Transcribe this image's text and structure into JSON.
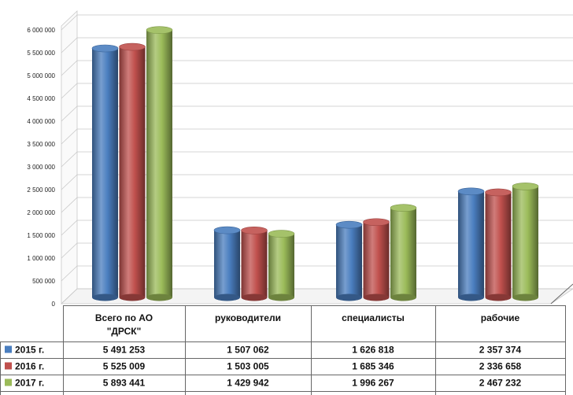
{
  "chart_data": {
    "type": "bar",
    "categories": [
      "Всего по АО \"ДРСК\"",
      "руководители",
      "специалисты",
      "рабочие"
    ],
    "category_lines": [
      [
        "Всего по АО",
        "\"ДРСК\""
      ],
      [
        "руководители"
      ],
      [
        "специалисты"
      ],
      [
        "рабочие"
      ]
    ],
    "series": [
      {
        "name": "2015 г.",
        "values": [
          5491253,
          1507062,
          1626818,
          2357374
        ],
        "labels": [
          "5 491 253",
          "1 507 062",
          "1 626 818",
          "2 357 374"
        ],
        "color": "#4a7ebf"
      },
      {
        "name": "2016 г.",
        "values": [
          5525009,
          1503005,
          1685346,
          2336658
        ],
        "labels": [
          "5 525 009",
          "1 503 005",
          "1 685 346",
          "2 336 658"
        ],
        "color": "#c0504d"
      },
      {
        "name": "2017 г.",
        "values": [
          5893441,
          1429942,
          1996267,
          2467232
        ],
        "labels": [
          "5 893 441",
          "1 429 942",
          "1 996 267",
          "2 467 232"
        ],
        "color": "#9bbb59"
      }
    ],
    "y_ticks": [
      0,
      500000,
      1000000,
      1500000,
      2000000,
      2500000,
      3000000,
      3500000,
      4000000,
      4500000,
      5000000,
      5500000,
      6000000
    ],
    "y_tick_labels": [
      "0",
      "500 000",
      "1 000 000",
      "1 500 000",
      "2 000 000",
      "2 500 000",
      "3 000 000",
      "3 500 000",
      "4 000 000",
      "4 500 000",
      "5 000 000",
      "5 500 000",
      "6 000 000"
    ],
    "ylim": [
      0,
      6500000
    ],
    "grid": true,
    "legend": "data table with legend keys",
    "style": "3d cylinder"
  }
}
